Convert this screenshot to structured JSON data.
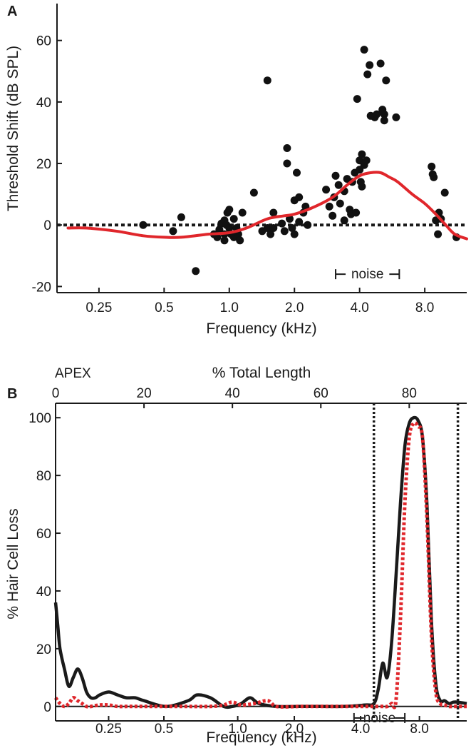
{
  "colors": {
    "ink": "#1a1a1a",
    "red": "#e0262b",
    "dot": "#111111"
  },
  "chart_data": [
    {
      "panel": "A",
      "type": "scatter",
      "xlabel": "Frequency (kHz)",
      "ylabel": "Threshold Shift (dB SPL)",
      "xscale": "log2",
      "xlim": [
        0.16,
        12.5
      ],
      "ylim": [
        -22,
        72
      ],
      "xticks": [
        {
          "v": 0.25,
          "label": "0.25"
        },
        {
          "v": 0.5,
          "label": "0.5"
        },
        {
          "v": 1.0,
          "label": "1.0"
        },
        {
          "v": 2.0,
          "label": "2.0"
        },
        {
          "v": 4.0,
          "label": "4.0"
        },
        {
          "v": 8.0,
          "label": "8.0"
        }
      ],
      "yticks": [
        {
          "v": -20,
          "label": "-20"
        },
        {
          "v": 0,
          "label": "0"
        },
        {
          "v": 20,
          "label": "20"
        },
        {
          "v": 40,
          "label": "40"
        },
        {
          "v": 60,
          "label": "60"
        }
      ],
      "points": [
        [
          0.4,
          0
        ],
        [
          0.55,
          -2
        ],
        [
          0.6,
          2.5
        ],
        [
          0.7,
          -15
        ],
        [
          0.85,
          -3
        ],
        [
          0.88,
          -4
        ],
        [
          0.9,
          -1.5
        ],
        [
          0.92,
          0.5
        ],
        [
          0.95,
          1.5
        ],
        [
          0.95,
          -3
        ],
        [
          0.95,
          -5
        ],
        [
          0.97,
          0
        ],
        [
          0.98,
          4
        ],
        [
          1.0,
          5
        ],
        [
          1.0,
          -1
        ],
        [
          1.02,
          -3
        ],
        [
          1.05,
          2
        ],
        [
          1.05,
          -4
        ],
        [
          1.08,
          -1
        ],
        [
          1.1,
          -3
        ],
        [
          1.12,
          -5
        ],
        [
          1.15,
          4
        ],
        [
          1.3,
          10.5
        ],
        [
          1.42,
          -2
        ],
        [
          1.5,
          47
        ],
        [
          1.5,
          -1
        ],
        [
          1.55,
          -3
        ],
        [
          1.6,
          4
        ],
        [
          1.6,
          -1
        ],
        [
          1.75,
          0.5
        ],
        [
          1.8,
          -2
        ],
        [
          1.85,
          25
        ],
        [
          1.85,
          20
        ],
        [
          1.9,
          2
        ],
        [
          1.95,
          -1
        ],
        [
          2.0,
          8
        ],
        [
          2.0,
          -3
        ],
        [
          2.05,
          17
        ],
        [
          2.1,
          9
        ],
        [
          2.1,
          1
        ],
        [
          2.2,
          4
        ],
        [
          2.25,
          6
        ],
        [
          2.3,
          0
        ],
        [
          2.8,
          11.5
        ],
        [
          2.9,
          6
        ],
        [
          3.0,
          3
        ],
        [
          3.05,
          9
        ],
        [
          3.1,
          16
        ],
        [
          3.2,
          13
        ],
        [
          3.25,
          7
        ],
        [
          3.4,
          1.5
        ],
        [
          3.4,
          11
        ],
        [
          3.5,
          15
        ],
        [
          3.6,
          5
        ],
        [
          3.65,
          3.5
        ],
        [
          3.7,
          14
        ],
        [
          3.8,
          17
        ],
        [
          3.85,
          4
        ],
        [
          3.9,
          41
        ],
        [
          4.0,
          18
        ],
        [
          4.0,
          21
        ],
        [
          4.05,
          14
        ],
        [
          4.1,
          23
        ],
        [
          4.1,
          12.5
        ],
        [
          4.2,
          57
        ],
        [
          4.2,
          19.5
        ],
        [
          4.3,
          21
        ],
        [
          4.35,
          49
        ],
        [
          4.45,
          52
        ],
        [
          4.5,
          35.5
        ],
        [
          4.7,
          35
        ],
        [
          4.8,
          36
        ],
        [
          5.0,
          52.5
        ],
        [
          5.1,
          37.5
        ],
        [
          5.2,
          36
        ],
        [
          5.2,
          34
        ],
        [
          5.3,
          47
        ],
        [
          5.9,
          35
        ],
        [
          8.6,
          19
        ],
        [
          8.7,
          16.5
        ],
        [
          8.8,
          15.5
        ],
        [
          9.0,
          1.5
        ],
        [
          9.2,
          -3
        ],
        [
          9.3,
          4
        ],
        [
          9.5,
          2
        ],
        [
          9.9,
          10.5
        ],
        [
          11.2,
          -4
        ]
      ],
      "fit_curve": {
        "x": [
          0.18,
          0.22,
          0.3,
          0.4,
          0.5,
          0.6,
          0.8,
          1.0,
          1.2,
          1.5,
          1.8,
          2.0,
          2.4,
          3.0,
          3.5,
          4.0,
          4.5,
          5.0,
          5.5,
          6.0,
          7.0,
          8.0,
          9.0,
          10.0,
          11.0,
          12.5
        ],
        "y": [
          -1,
          -1,
          -2,
          -3.5,
          -4,
          -4,
          -3,
          -2.5,
          -1,
          2,
          3,
          3.5,
          5.5,
          9,
          13,
          16,
          17,
          17,
          15.5,
          14,
          10,
          7,
          3.5,
          0,
          -3,
          -4.5
        ]
      },
      "zero_line": 0,
      "annotation": {
        "text": "noise",
        "from": 3.1,
        "to": 6.1,
        "y": -16
      }
    },
    {
      "panel": "B",
      "type": "line",
      "title": "% Total Length",
      "apex_label": "APEX",
      "xlabel": "Frequency (kHz)",
      "ylabel": "% Hair Cell Loss",
      "xlim": [
        0,
        93
      ],
      "ylim": [
        -5,
        105
      ],
      "top_ticks": [
        {
          "v": 0,
          "label": "0"
        },
        {
          "v": 20,
          "label": "20"
        },
        {
          "v": 40,
          "label": "40"
        },
        {
          "v": 60,
          "label": "60"
        },
        {
          "v": 80,
          "label": "80"
        }
      ],
      "bottom_ticks": [
        {
          "v": 12,
          "label": "0.25"
        },
        {
          "v": 24.5,
          "label": "0.5"
        },
        {
          "v": 41.2,
          "label": "1.0"
        },
        {
          "v": 54,
          "label": "2.0"
        },
        {
          "v": 69,
          "label": "4.0"
        },
        {
          "v": 82.3,
          "label": "8.0"
        }
      ],
      "yticks": [
        {
          "v": 0,
          "label": "0"
        },
        {
          "v": 20,
          "label": "20"
        },
        {
          "v": 40,
          "label": "40"
        },
        {
          "v": 60,
          "label": "60"
        },
        {
          "v": 80,
          "label": "80"
        },
        {
          "v": 100,
          "label": "100"
        }
      ],
      "vlines": [
        72,
        91
      ],
      "series": [
        {
          "name": "black",
          "style": "solid",
          "x": [
            0,
            0.5,
            1,
            2,
            3,
            4,
            5,
            6,
            7,
            8,
            9,
            10,
            12,
            14,
            16,
            18,
            20,
            25,
            30,
            32,
            35,
            38,
            40,
            42,
            44,
            46,
            50,
            55,
            60,
            65,
            70,
            72,
            73,
            74,
            75,
            76,
            77,
            78,
            79,
            80,
            81,
            82,
            83,
            84,
            85,
            86,
            87,
            88,
            89,
            90,
            91,
            93
          ],
          "y": [
            36,
            28,
            20,
            13,
            7,
            10,
            13,
            10,
            5,
            3,
            3,
            4,
            5,
            4,
            3,
            3,
            2,
            0,
            2,
            4,
            3,
            0,
            0,
            1,
            3,
            1,
            0,
            0,
            0,
            0,
            0.5,
            1,
            6,
            15,
            10,
            22,
            45,
            70,
            90,
            98,
            100,
            99,
            93,
            70,
            30,
            8,
            2,
            2,
            1,
            1.5,
            1.5,
            1
          ]
        },
        {
          "name": "red",
          "style": "dotted",
          "x": [
            0,
            1,
            2,
            3,
            4,
            5,
            6,
            7,
            8,
            10,
            12,
            14,
            16,
            18,
            20,
            25,
            30,
            35,
            38,
            40,
            42,
            45,
            48,
            50,
            55,
            60,
            65,
            70,
            72,
            74,
            75,
            76,
            77,
            78,
            79,
            80,
            81,
            82,
            83,
            84,
            85,
            86,
            87,
            88,
            89,
            90,
            91,
            92,
            93
          ],
          "y": [
            3,
            1,
            0,
            1,
            3,
            2,
            1,
            0,
            0,
            0.5,
            0.5,
            0,
            0,
            0,
            0,
            0,
            0,
            0,
            0.5,
            1.5,
            0.5,
            1,
            2,
            0,
            0,
            0,
            0,
            0,
            0,
            0,
            0,
            1,
            2,
            30,
            70,
            93,
            98,
            97,
            93,
            65,
            25,
            5,
            1,
            0.5,
            0,
            0,
            0,
            0,
            0
          ]
        }
      ],
      "annotation": {
        "text": "noise",
        "from": 67.5,
        "to": 79,
        "y": -4
      }
    }
  ]
}
